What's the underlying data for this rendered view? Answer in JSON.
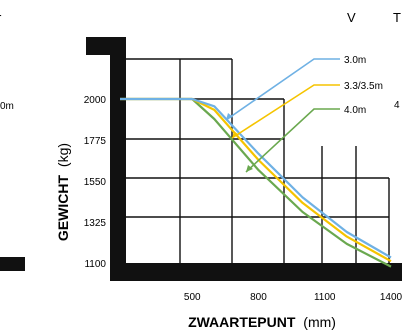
{
  "edge_glyphs": {
    "top_left": "r",
    "mid_left": "0m",
    "top_v": "V",
    "top_t": "T",
    "right_four": "4"
  },
  "chart_data": {
    "type": "line",
    "xlabel": {
      "bold": "ZWAARTEPUNT",
      "unit": "(mm)"
    },
    "ylabel": {
      "bold": "GEWICHT",
      "unit": "(kg)"
    },
    "x_ticks": [
      500,
      800,
      1100,
      1400
    ],
    "x_tick_labels": [
      "500",
      "800",
      "1100",
      "1400"
    ],
    "y_ticks": [
      1100,
      1325,
      1550,
      1775,
      2000
    ],
    "y_tick_labels": [
      "1100",
      "1325",
      "1550",
      "1775",
      "2000"
    ],
    "xlim": [
      200,
      1450
    ],
    "ylim": [
      1100,
      2000
    ],
    "grid": true,
    "legend_position": "top-right (callouts with leader lines)",
    "colors": {
      "3.0m": "#6fb1e4",
      "3.3/3.5m": "#f5c400",
      "4.0m": "#6aa84f",
      "frame": "#000000"
    },
    "series": [
      {
        "name": "3.0m",
        "x": [
          500,
          600,
          800,
          1000,
          1200,
          1400
        ],
        "y": [
          2000,
          1960,
          1700,
          1460,
          1270,
          1130
        ]
      },
      {
        "name": "3.3/3.5m",
        "x": [
          500,
          600,
          800,
          1000,
          1200,
          1400
        ],
        "y": [
          2000,
          1940,
          1665,
          1430,
          1245,
          1110
        ]
      },
      {
        "name": "4.0m",
        "x": [
          500,
          600,
          800,
          1000,
          1200,
          1400
        ],
        "y": [
          2000,
          1890,
          1610,
          1380,
          1205,
          1080
        ]
      }
    ]
  }
}
